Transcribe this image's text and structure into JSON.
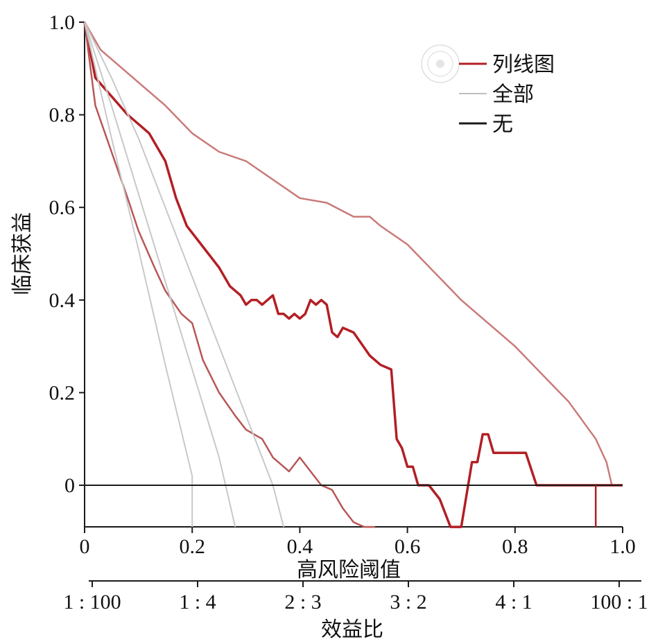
{
  "chart_data": {
    "type": "line",
    "xlabel": "高风险阈值",
    "ylabel": "临床获益",
    "x_ticks": [
      "0",
      "0.2",
      "0.4",
      "0.6",
      "0.8",
      "1.0"
    ],
    "y_ticks": [
      "0",
      "0.2",
      "0.4",
      "0.6",
      "0.8",
      "1.0"
    ],
    "xlim": [
      0,
      1.0
    ],
    "ylim": [
      -0.09,
      1.0
    ],
    "secondary_axis": {
      "label": "效益比",
      "ticks": [
        "1 : 100",
        "1 : 4",
        "2 : 3",
        "3 : 2",
        "4 : 1",
        "100 : 1"
      ]
    },
    "legend_position": "top-right",
    "legend": [
      {
        "label": "列线图",
        "color": "#b21f24"
      },
      {
        "label": "全部",
        "color": "#bdbdbd"
      },
      {
        "label": "无",
        "color": "#1a1a1a"
      }
    ],
    "series": [
      {
        "kind": "nomogram",
        "color": "#c97a78",
        "width": 2.5,
        "x": [
          0,
          0.03,
          0.06,
          0.1,
          0.15,
          0.2,
          0.25,
          0.3,
          0.35,
          0.4,
          0.45,
          0.5,
          0.53,
          0.55,
          0.6,
          0.65,
          0.7,
          0.75,
          0.8,
          0.85,
          0.9,
          0.95,
          0.97,
          0.98
        ],
        "y": [
          1.0,
          0.94,
          0.91,
          0.87,
          0.82,
          0.76,
          0.72,
          0.7,
          0.66,
          0.62,
          0.61,
          0.58,
          0.58,
          0.56,
          0.52,
          0.46,
          0.4,
          0.35,
          0.3,
          0.24,
          0.18,
          0.1,
          0.05,
          0.0
        ]
      },
      {
        "kind": "nomogram",
        "color": "#b21f24",
        "width": 3.5,
        "x": [
          0,
          0.02,
          0.05,
          0.08,
          0.11,
          0.12,
          0.13,
          0.15,
          0.17,
          0.19,
          0.21,
          0.23,
          0.25,
          0.27,
          0.29,
          0.3,
          0.31,
          0.32,
          0.33,
          0.34,
          0.35,
          0.36,
          0.37,
          0.38,
          0.39,
          0.4,
          0.41,
          0.42,
          0.43,
          0.44,
          0.45,
          0.46,
          0.47,
          0.48,
          0.5,
          0.53,
          0.55,
          0.57,
          0.58,
          0.59,
          0.6,
          0.61,
          0.62,
          0.64,
          0.66,
          0.68,
          0.7,
          0.72,
          0.73,
          0.74,
          0.75,
          0.76,
          0.8,
          0.82,
          0.84,
          0.9,
          1.0
        ],
        "y": [
          1.0,
          0.88,
          0.84,
          0.8,
          0.77,
          0.76,
          0.74,
          0.7,
          0.62,
          0.56,
          0.53,
          0.5,
          0.47,
          0.43,
          0.41,
          0.39,
          0.4,
          0.4,
          0.39,
          0.4,
          0.41,
          0.37,
          0.37,
          0.36,
          0.37,
          0.36,
          0.37,
          0.4,
          0.39,
          0.4,
          0.39,
          0.33,
          0.32,
          0.34,
          0.33,
          0.28,
          0.26,
          0.25,
          0.1,
          0.08,
          0.04,
          0.04,
          0.0,
          0.0,
          -0.03,
          -0.09,
          -0.09,
          0.05,
          0.05,
          0.11,
          0.11,
          0.07,
          0.07,
          0.07,
          0.0,
          0.0,
          0.0
        ]
      },
      {
        "kind": "nomogram",
        "color": "#b85656",
        "width": 2.5,
        "x": [
          0,
          0.02,
          0.05,
          0.08,
          0.1,
          0.13,
          0.15,
          0.18,
          0.2,
          0.22,
          0.25,
          0.28,
          0.3,
          0.33,
          0.35,
          0.37,
          0.38,
          0.4,
          0.42,
          0.44,
          0.46,
          0.48,
          0.5,
          0.52,
          0.54
        ],
        "y": [
          1.0,
          0.82,
          0.72,
          0.62,
          0.55,
          0.47,
          0.42,
          0.37,
          0.35,
          0.27,
          0.2,
          0.15,
          0.12,
          0.1,
          0.06,
          0.04,
          0.03,
          0.06,
          0.03,
          0.0,
          -0.01,
          -0.05,
          -0.08,
          -0.09,
          -0.09
        ]
      },
      {
        "kind": "all",
        "color": "#c8c8c8",
        "width": 2,
        "x": [
          0,
          0.05,
          0.1,
          0.15,
          0.2,
          0.25,
          0.3,
          0.35,
          0.37
        ],
        "y": [
          1.0,
          0.88,
          0.75,
          0.6,
          0.45,
          0.3,
          0.15,
          0.0,
          -0.09
        ]
      },
      {
        "kind": "all",
        "color": "#c8c8c8",
        "width": 2,
        "x": [
          0,
          0.05,
          0.1,
          0.15,
          0.2,
          0.25,
          0.28
        ],
        "y": [
          1.0,
          0.82,
          0.63,
          0.44,
          0.25,
          0.06,
          -0.09
        ]
      },
      {
        "kind": "all",
        "color": "#c8c8c8",
        "width": 2,
        "x": [
          0,
          0.05,
          0.1,
          0.15,
          0.2,
          0.2
        ],
        "y": [
          1.0,
          0.75,
          0.51,
          0.26,
          0.02,
          -0.09
        ]
      },
      {
        "kind": "none",
        "color": "#1a1a1a",
        "width": 2,
        "x": [
          0,
          1.0
        ],
        "y": [
          0,
          0
        ]
      },
      {
        "kind": "nomogram",
        "color": "#b21f24",
        "width": 2.5,
        "x": [
          0.95,
          0.95
        ],
        "y": [
          0,
          -0.09
        ]
      }
    ]
  }
}
